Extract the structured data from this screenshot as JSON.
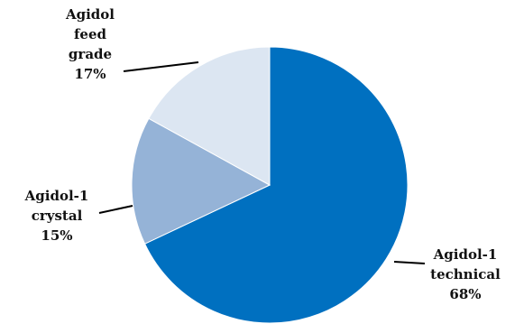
{
  "chart_data": {
    "type": "pie",
    "start_angle_deg": 0,
    "direction": "clockwise",
    "slices": [
      {
        "label_lines": [
          "Agidol-1",
          "technical"
        ],
        "value": 68,
        "value_label": "68%",
        "color": "#0070c0"
      },
      {
        "label_lines": [
          "Agidol-1",
          "crystal"
        ],
        "value": 15,
        "value_label": "15%",
        "color": "#95b3d7"
      },
      {
        "label_lines": [
          "Agidol",
          "feed",
          "grade"
        ],
        "value": 17,
        "value_label": "17%",
        "color": "#dce6f2"
      }
    ]
  }
}
